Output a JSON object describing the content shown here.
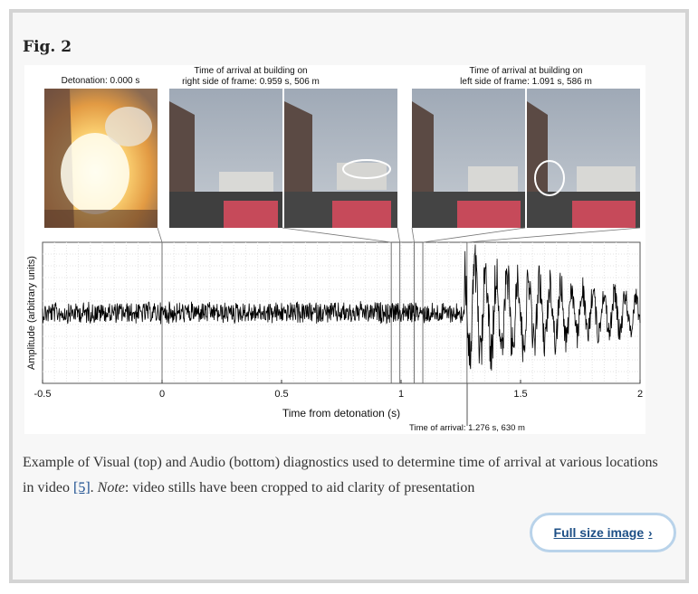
{
  "figure": {
    "label": "Fig. 2",
    "frame_labels": [
      {
        "lines": [
          "Detonation: 0.000 s"
        ]
      },
      {
        "lines": [
          "Time of arrival at building on",
          "right side of frame: 0.959 s, 506 m"
        ]
      },
      {
        "lines": [
          "Time of arrival at building on",
          "left side of frame: 1.091 s, 586 m"
        ]
      }
    ],
    "arrival_annotation": "Time of arrival: 1.276 s, 630 m",
    "caption_before_ref": "Example of Visual (top) and Audio (bottom) diagnostics used to determine time of arrival at various locations in video ",
    "caption_ref": "[5]",
    "caption_note": "Note",
    "caption_after_note": ": video stills have been cropped to aid clarity of presentation",
    "full_size_label": "Full size image"
  },
  "chart_data": {
    "type": "line",
    "xlabel": "Time from detonation (s)",
    "ylabel": "Amplitude (arbitrary units)",
    "xlim": [
      -0.5,
      2
    ],
    "xticks": [
      -0.5,
      0,
      0.5,
      1,
      1.5,
      2
    ],
    "xtick_labels": [
      "-0.5",
      "0",
      "0.5",
      "1",
      "1.5",
      "2"
    ],
    "grid": true,
    "marker_times": [
      0,
      0.959,
      0.995,
      1.055,
      1.091,
      1.276
    ],
    "series": [
      {
        "description_points": [
          {
            "x": -0.5,
            "y": 0.0
          },
          {
            "x": 1.25,
            "y": 0.0
          },
          {
            "x": 1.276,
            "y": 0.9
          },
          {
            "x": 1.45,
            "y": -1.0
          },
          {
            "x": 2.0,
            "y": 0.2
          }
        ]
      }
    ]
  }
}
